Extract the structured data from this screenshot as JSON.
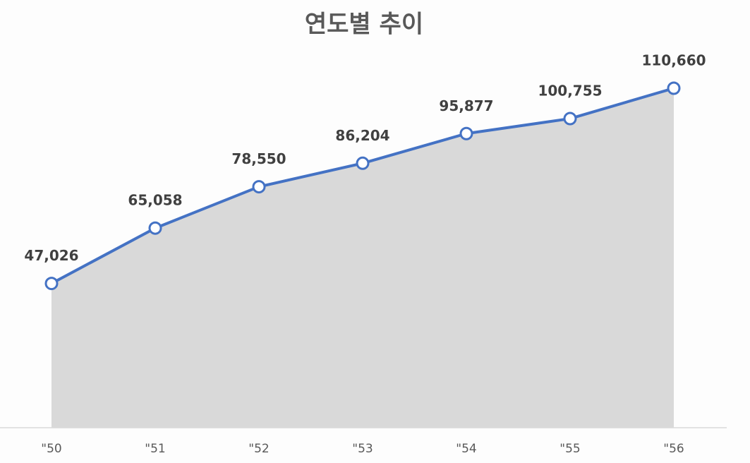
{
  "chart_data": {
    "type": "area",
    "title": "연도별 추이",
    "categories": [
      "\"50",
      "\"51",
      "\"52",
      "\"53",
      "\"54",
      "\"55",
      "\"56"
    ],
    "values": [
      47026,
      65058,
      78550,
      86204,
      95877,
      100755,
      110660
    ],
    "value_labels": [
      "47,026",
      "65,058",
      "78,550",
      "86,204",
      "95,877",
      "100,755",
      "110,660"
    ],
    "color": "#4472c4",
    "fill": "#d9d9d9"
  }
}
